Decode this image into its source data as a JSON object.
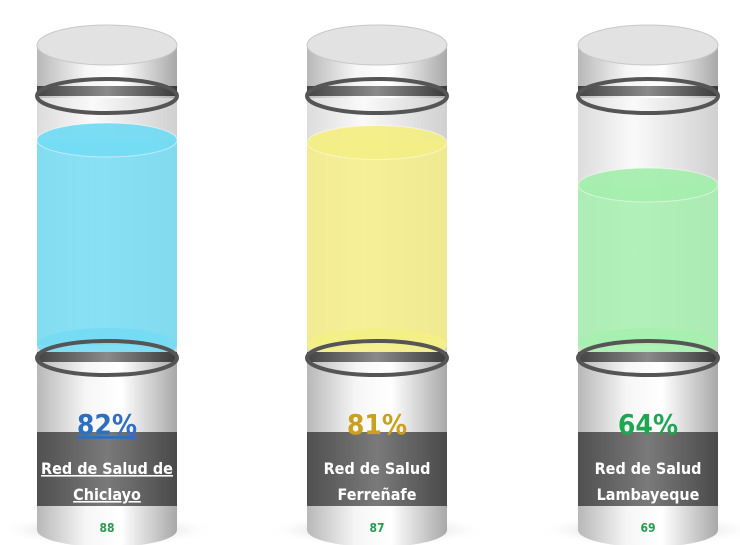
{
  "chart_data": {
    "type": "cylinder",
    "categories": [
      [
        "Red de Salud de",
        "Chiclayo"
      ],
      [
        "Red de Salud",
        "Ferreñafe"
      ],
      [
        "Red de Salud",
        "Lambayeque"
      ]
    ],
    "values": [
      82,
      81,
      64
    ],
    "value_labels": [
      "82%",
      "81%",
      "64%"
    ],
    "counts": [
      88,
      87,
      69
    ],
    "colors": [
      "#74dcf4",
      "#f4ef86",
      "#a6efae"
    ],
    "label_colors": [
      "#2f6fc0",
      "#c9a11e",
      "#1fa653"
    ],
    "count_color": "#2a9a4e",
    "ylim": [
      0,
      100
    ]
  }
}
